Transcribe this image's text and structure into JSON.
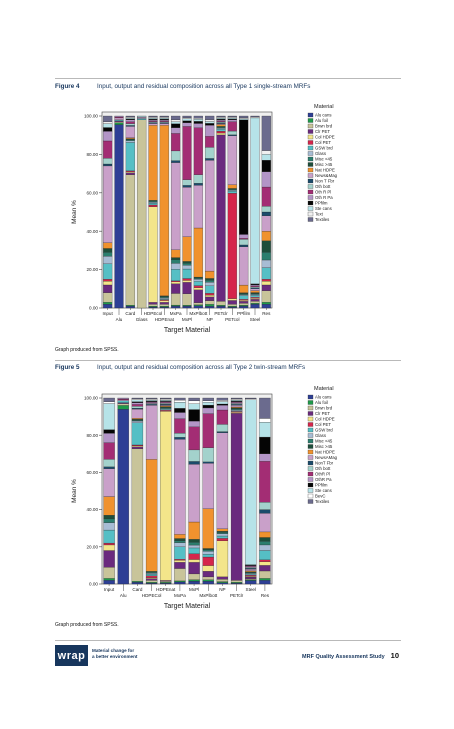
{
  "figures": [
    {
      "number": "Figure 4",
      "caption": "Input, output and residual composition across all Type 1 single-stream MRFs",
      "note": "Graph produced from SPSS."
    },
    {
      "number": "Figure 5",
      "caption": "Input, output and residual composition across all Type 2 twin-stream MRFs",
      "note": "Graph produced from SPSS."
    }
  ],
  "footer": {
    "logo": "wrap",
    "tagline_line1": "Material change for",
    "tagline_line2": "a better environment",
    "doc_title": "MRF Quality Assessment Study",
    "page_number": "10"
  },
  "chart_data": [
    {
      "type": "bar",
      "stacked": true,
      "percent": true,
      "ylabel": "Mean %",
      "xlabel": "Target Material",
      "ylim": [
        0,
        100
      ],
      "yticks": [
        "0.00",
        "20.00",
        "40.00",
        "60.00",
        "80.00",
        "100.00"
      ],
      "legend_title": "Material",
      "legend_position": "right",
      "categories": [
        "Input",
        "Alu",
        "Card",
        "Glass",
        "HDPEcol",
        "HDPEnat",
        "MxPa",
        "MxPl",
        "MxPlbott",
        "NP",
        "PETclr",
        "PETcol",
        "PPfilm",
        "Steel",
        "Res"
      ],
      "series": [
        {
          "name": "Alu cans",
          "color": "#2e3f95",
          "values": [
            2,
            96,
            1,
            0,
            0.5,
            0.5,
            1,
            1,
            1,
            0.5,
            1,
            0.5,
            1,
            2,
            2
          ]
        },
        {
          "name": "Alu foil",
          "color": "#1f9a4a",
          "values": [
            1,
            1,
            0.5,
            0,
            0.5,
            0.5,
            0.5,
            0.5,
            0.5,
            0.5,
            0.5,
            0.5,
            0.5,
            0.5,
            1
          ]
        },
        {
          "name": "Brwn brd",
          "color": "#c8c49a",
          "values": [
            5,
            0.5,
            69,
            98,
            1,
            1,
            6,
            6,
            1,
            1,
            2,
            1,
            1,
            1,
            6
          ]
        },
        {
          "name": "Clr PET",
          "color": "#6a2a7e",
          "values": [
            4,
            0.5,
            1,
            0,
            1,
            1,
            5,
            6,
            6,
            1,
            88,
            2,
            1,
            1,
            3
          ]
        },
        {
          "name": "Col HDPE",
          "color": "#f3e58a",
          "values": [
            2,
            0,
            0.5,
            0,
            51,
            1,
            1,
            1,
            1,
            0.5,
            1,
            1,
            0.5,
            0.5,
            2
          ]
        },
        {
          "name": "Col PET",
          "color": "#d5254b",
          "values": [
            1,
            0,
            0.5,
            0,
            1,
            0.5,
            0.5,
            1,
            1,
            0.5,
            1,
            56,
            0.5,
            0.5,
            1
          ]
        },
        {
          "name": "GSW brd",
          "color": "#55bfc5",
          "values": [
            8,
            0.5,
            15,
            0.5,
            1,
            0.5,
            6,
            5,
            2,
            2,
            1,
            1,
            2,
            1,
            6
          ]
        },
        {
          "name": "Glass",
          "color": "#a7bcd4",
          "values": [
            4,
            0,
            1,
            0.5,
            0.5,
            0.5,
            3,
            2,
            1,
            1,
            0.5,
            0.5,
            0.5,
            0.5,
            4
          ]
        },
        {
          "name": "Misc <45",
          "color": "#2b7e6e",
          "values": [
            2,
            0,
            0.5,
            0,
            0.5,
            0.5,
            2,
            1,
            0.5,
            0.5,
            0.5,
            0.5,
            0.5,
            0.5,
            4
          ]
        },
        {
          "name": "Misc >45",
          "color": "#1d4e3b",
          "values": [
            2,
            0,
            0.5,
            0,
            0.5,
            0.5,
            1,
            1,
            0.5,
            0.5,
            0.5,
            0.5,
            0.5,
            0.5,
            6
          ]
        },
        {
          "name": "Nat HDPE",
          "color": "#f0922e",
          "values": [
            3,
            0,
            0.5,
            0,
            40,
            91,
            4,
            13,
            23,
            2,
            1,
            2,
            4,
            1,
            5
          ]
        },
        {
          "name": "News&Mag",
          "color": "#c9a0c9",
          "values": [
            40,
            1,
            6,
            0.5,
            1,
            1,
            45,
            26,
            20,
            30,
            0.5,
            26,
            20,
            1,
            8
          ]
        },
        {
          "name": "Non T Fbr",
          "color": "#1b4b6b",
          "values": [
            1,
            0,
            0.5,
            0,
            0.5,
            0.5,
            1,
            1,
            1,
            0.5,
            0.5,
            0.5,
            1,
            0.5,
            2
          ]
        },
        {
          "name": "Oth bott",
          "color": "#a3d2cc",
          "values": [
            3,
            0,
            1,
            0,
            0.5,
            0.5,
            5,
            3,
            4,
            3,
            0.5,
            2,
            3,
            0.5,
            3
          ]
        },
        {
          "name": "Oth R Pl",
          "color": "#a32d74",
          "values": [
            9,
            0.5,
            1,
            0,
            0.5,
            0.5,
            9,
            28,
            22,
            3,
            0.5,
            5,
            0.5,
            0.5,
            10
          ]
        },
        {
          "name": "Oth R Pa",
          "color": "#b395c7",
          "values": [
            5,
            0.5,
            1,
            0,
            0.5,
            0.5,
            3,
            2,
            2,
            3,
            0.5,
            1,
            2,
            0.5,
            8
          ]
        },
        {
          "name": "PPfilm",
          "color": "#050505",
          "values": [
            2,
            0,
            0.5,
            0,
            0.5,
            0.5,
            2,
            1,
            1,
            0.5,
            0.5,
            0.5,
            60,
            0.5,
            6
          ]
        },
        {
          "name": "Ste cans",
          "color": "#b6e3e8",
          "values": [
            2,
            0,
            0.5,
            0.5,
            0.5,
            0.5,
            1,
            1,
            1,
            0.5,
            0.5,
            0.5,
            0.5,
            86,
            3
          ]
        },
        {
          "name": "Text",
          "color": "#f0f0f0",
          "values": [
            1,
            0,
            0.5,
            0,
            0.5,
            0.5,
            1,
            0.5,
            0.5,
            0.5,
            0.5,
            0.5,
            0.5,
            0.5,
            2
          ]
        },
        {
          "name": "Textiles",
          "color": "#6b6b8e",
          "values": [
            3,
            0,
            0.5,
            0,
            0.5,
            0.5,
            2,
            1,
            1,
            1,
            0.5,
            0.5,
            1,
            0.5,
            18
          ]
        }
      ]
    },
    {
      "type": "bar",
      "stacked": true,
      "percent": true,
      "ylabel": "Mean %",
      "xlabel": "Target Material",
      "ylim": [
        0,
        100
      ],
      "yticks": [
        "0.00",
        "20.00",
        "40.00",
        "60.00",
        "80.00",
        "100.00"
      ],
      "legend_title": "Material",
      "legend_position": "right",
      "categories": [
        "Input",
        "Alu",
        "Card",
        "HDPECol",
        "HDPEnat",
        "MxPa",
        "MxPl",
        "MxPlbott",
        "NP",
        "PETclr",
        "Steel",
        "Res"
      ],
      "series": [
        {
          "name": "Alu cans",
          "color": "#2e3f95",
          "values": [
            2,
            94,
            1,
            0.5,
            0.5,
            1,
            1,
            1,
            0.5,
            0.5,
            2,
            2
          ]
        },
        {
          "name": "Alu foil",
          "color": "#1f9a4a",
          "values": [
            1,
            2,
            0.5,
            0.5,
            0.5,
            0.5,
            0.5,
            0.5,
            0.5,
            0.5,
            0.5,
            1
          ]
        },
        {
          "name": "Brwn brd",
          "color": "#c8c49a",
          "values": [
            6,
            1,
            72,
            1,
            0.5,
            6,
            2,
            1,
            1,
            1,
            0.5,
            4
          ]
        },
        {
          "name": "Clr PET",
          "color": "#6a2a7e",
          "values": [
            9,
            0.5,
            1,
            1,
            0.5,
            3,
            4,
            2,
            1,
            93,
            1,
            3
          ]
        },
        {
          "name": "Col HDPE",
          "color": "#f3e58a",
          "values": [
            3,
            0,
            0.5,
            0.5,
            96,
            1,
            1,
            2,
            15,
            0.5,
            0.5,
            2
          ]
        },
        {
          "name": "Col PET",
          "color": "#d5254b",
          "values": [
            1,
            0,
            0.5,
            1,
            0.5,
            0.5,
            2,
            3,
            1,
            0.5,
            0.5,
            1
          ]
        },
        {
          "name": "GSW brd",
          "color": "#55bfc5",
          "values": [
            7,
            1,
            12,
            1,
            0.5,
            6,
            2,
            1,
            1,
            0.5,
            0.5,
            5
          ]
        },
        {
          "name": "Glass",
          "color": "#a7bcd4",
          "values": [
            4,
            0,
            1,
            0.5,
            0.5,
            2,
            1,
            1,
            1,
            0.5,
            0.5,
            3
          ]
        },
        {
          "name": "Misc <45",
          "color": "#2b7e6e",
          "values": [
            2,
            0,
            0.5,
            0.5,
            0.5,
            1,
            1,
            0.5,
            0.5,
            0.5,
            0.5,
            2
          ]
        },
        {
          "name": "Misc >45",
          "color": "#1d4e3b",
          "values": [
            2,
            0,
            0.5,
            0.5,
            0.5,
            1,
            1,
            0.5,
            0.5,
            0.5,
            0.5,
            2
          ]
        },
        {
          "name": "Nat HDPE",
          "color": "#f0922e",
          "values": [
            10,
            0,
            0.5,
            62,
            0.5,
            2,
            6,
            14,
            1,
            0.5,
            0.5,
            3
          ]
        },
        {
          "name": "NewsAMag",
          "color": "#c9a0c9",
          "values": [
            15,
            0.5,
            5,
            30,
            0.5,
            46,
            20,
            16,
            40,
            1,
            1,
            10
          ]
        },
        {
          "name": "NonT Fbr",
          "color": "#1b4b6b",
          "values": [
            1,
            0,
            0.5,
            0.5,
            0.5,
            1,
            1,
            0.5,
            0.5,
            0.5,
            0.5,
            2
          ]
        },
        {
          "name": "Oth bott",
          "color": "#a3d2cc",
          "values": [
            4,
            0,
            1,
            0.5,
            0.5,
            2,
            4,
            5,
            3,
            0.5,
            0.5,
            4
          ]
        },
        {
          "name": "OthR Pl",
          "color": "#a32d74",
          "values": [
            9,
            0.5,
            1,
            0.5,
            0.5,
            7,
            8,
            12,
            6,
            0.5,
            0.5,
            22
          ]
        },
        {
          "name": "OthR Pa",
          "color": "#b395c7",
          "values": [
            5,
            0.5,
            1,
            0.5,
            0.5,
            3,
            2,
            2,
            2,
            0.5,
            0.5,
            4
          ]
        },
        {
          "name": "PPfilm",
          "color": "#050505",
          "values": [
            2,
            0,
            0.5,
            0.5,
            0.5,
            2,
            4,
            1,
            0.5,
            0.5,
            0.5,
            9
          ]
        },
        {
          "name": "Ste cans",
          "color": "#b6e3e8",
          "values": [
            14,
            0,
            1,
            0.5,
            0.5,
            3,
            2,
            1,
            1,
            0.5,
            94,
            8
          ]
        },
        {
          "name": "BevC",
          "color": "#ffffff",
          "values": [
            1,
            0,
            0.5,
            0.5,
            0.5,
            1,
            1,
            0.5,
            0.5,
            0.5,
            0.5,
            2
          ]
        },
        {
          "name": "Textiles",
          "color": "#6b6b8e",
          "values": [
            2,
            0,
            0.5,
            0.5,
            0.5,
            1,
            1,
            1,
            1,
            0.5,
            0.5,
            11
          ]
        }
      ]
    }
  ]
}
